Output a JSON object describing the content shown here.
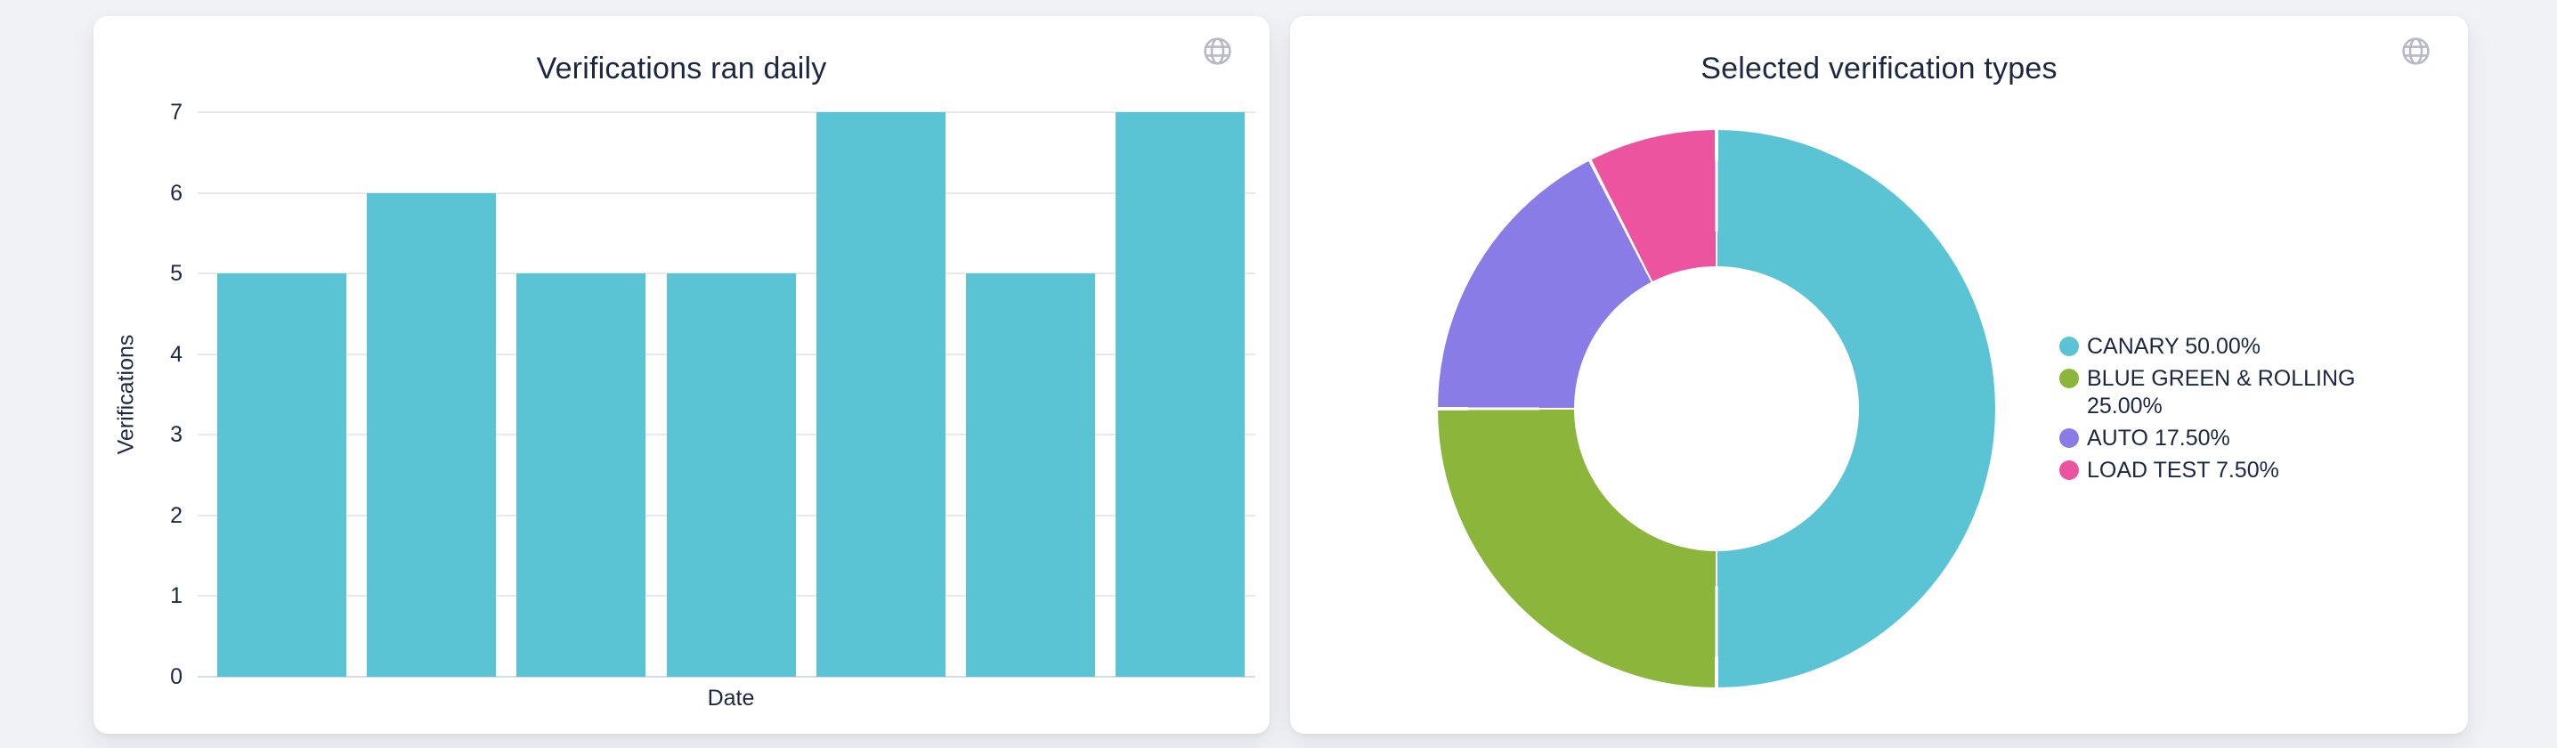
{
  "colors": {
    "page_bg": "#f0f2f5",
    "card_bg": "#ffffff",
    "text": "#1c2742",
    "grid": "#e8e9eb",
    "axis_line": "#d7dbe2",
    "icon": "#b6bac3"
  },
  "cards": [
    {
      "title": "Verifications ran daily",
      "icon": "globe-icon"
    },
    {
      "title": "Selected verification types",
      "icon": "globe-icon"
    }
  ],
  "chart_data": [
    {
      "type": "bar",
      "title": "Verifications ran daily",
      "xlabel": "Date",
      "ylabel": "Verifications",
      "values": [
        5,
        6,
        5,
        5,
        7,
        5,
        7
      ],
      "ylim": [
        0,
        7
      ],
      "yticks": [
        0,
        1,
        2,
        3,
        4,
        5,
        6,
        7
      ],
      "grid": true,
      "bar_color": "#5bc4d4",
      "legend_position": "none"
    },
    {
      "type": "pie",
      "donut": true,
      "title": "Selected verification types",
      "hole_ratio": 0.51,
      "legend_position": "right",
      "slices": [
        {
          "label": "CANARY",
          "value_pct": 50.0,
          "legend_text": "CANARY 50.00%",
          "color": "#5bc4d4"
        },
        {
          "label": "BLUE GREEN & ROLLING",
          "value_pct": 25.0,
          "legend_text": "BLUE GREEN & ROLLING 25.00%",
          "color": "#8bb63b"
        },
        {
          "label": "AUTO",
          "value_pct": 17.5,
          "legend_text": "AUTO 17.50%",
          "color": "#8a7ce6"
        },
        {
          "label": "LOAD TEST",
          "value_pct": 7.5,
          "legend_text": "LOAD TEST 7.50%",
          "color": "#ec549f"
        }
      ]
    }
  ]
}
